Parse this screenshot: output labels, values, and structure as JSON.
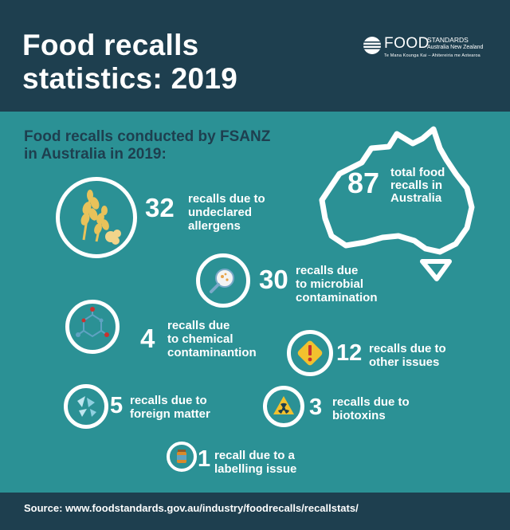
{
  "title": "Food recalls\nstatistics: 2019",
  "logo": {
    "word": "FOOD",
    "word2": "STANDARDS",
    "word3": "Australia New Zealand",
    "tagline": "Te Mana Kounga Kai – Ahitereiria me Aotearoa"
  },
  "subtitle": "Food recalls conducted by FSANZ\nin Australia in 2019:",
  "total": {
    "number": "87",
    "text": "total food\nrecalls in\nAustralia"
  },
  "items": [
    {
      "number": "32",
      "text": "recalls due to\nundeclared\nallergens",
      "icon": "wheat-icon"
    },
    {
      "number": "30",
      "text": "recalls due\nto microbial\ncontamination",
      "icon": "petri-dish-icon"
    },
    {
      "number": "4",
      "text": "recalls due\nto chemical\ncontaminantion",
      "icon": "molecule-icon"
    },
    {
      "number": "12",
      "text": "recalls due to\nother issues",
      "icon": "warning-icon"
    },
    {
      "number": "5",
      "text": "recalls due to\nforeign matter",
      "icon": "glass-shards-icon"
    },
    {
      "number": "3",
      "text": "recalls due to\nbiotoxins",
      "icon": "hazard-icon"
    },
    {
      "number": "1",
      "text": "recall due to a\nlabelling issue",
      "icon": "jar-label-icon"
    }
  ],
  "source": "Source: www.foodstandards.gov.au/industry/foodrecalls/recallstats/",
  "colors": {
    "navy": "#1e3f4f",
    "teal": "#2b9195",
    "white": "#ffffff",
    "wheat": "#e8c25a",
    "warning_red": "#c8322f",
    "warning_yellow": "#f2c12e"
  }
}
